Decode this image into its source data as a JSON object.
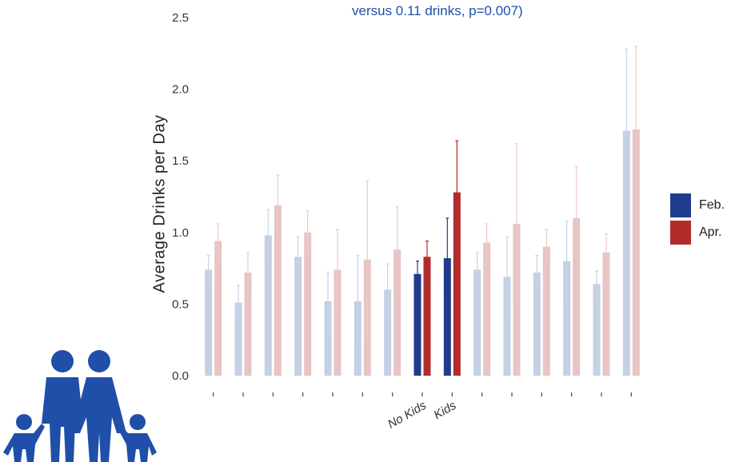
{
  "subtitle": "versus 0.11 drinks, p=0.007)",
  "legend": [
    {
      "label": "Feb.",
      "color": "#1f3d8c"
    },
    {
      "label": "Apr.",
      "color": "#b22c2c"
    }
  ],
  "chart_data": {
    "type": "bar",
    "ylabel": "Average Drinks per Day",
    "ylim": [
      0,
      2.5
    ],
    "yticks": [
      "0.0",
      "0.5",
      "1.0",
      "1.5",
      "2.0",
      "2.5"
    ],
    "categories": [
      "",
      "",
      "",
      "",
      "",
      "",
      "",
      "No Kids",
      "Kids",
      "",
      "",
      "",
      "",
      "",
      ""
    ],
    "highlighted": [
      7,
      8
    ],
    "series": [
      {
        "name": "Feb.",
        "values": [
          0.74,
          0.51,
          0.98,
          0.83,
          0.52,
          0.52,
          0.6,
          0.71,
          0.82,
          0.74,
          0.69,
          0.72,
          0.8,
          0.64,
          1.71
        ],
        "err_low": [
          0.64,
          0.38,
          0.8,
          0.68,
          0.32,
          0.2,
          0.42,
          0.62,
          0.55,
          0.62,
          0.4,
          0.6,
          0.52,
          0.55,
          1.15
        ],
        "err_high": [
          0.84,
          0.63,
          1.16,
          0.97,
          0.72,
          0.84,
          0.78,
          0.8,
          1.1,
          0.86,
          0.97,
          0.84,
          1.08,
          0.73,
          2.28
        ]
      },
      {
        "name": "Apr.",
        "values": [
          0.94,
          0.72,
          1.19,
          1.0,
          0.74,
          0.81,
          0.88,
          0.83,
          1.28,
          0.93,
          1.06,
          0.9,
          1.1,
          0.86,
          1.72
        ],
        "err_low": [
          0.82,
          0.58,
          0.98,
          0.85,
          0.46,
          0.26,
          0.58,
          0.72,
          0.92,
          0.8,
          0.5,
          0.78,
          0.74,
          0.72,
          1.15
        ],
        "err_high": [
          1.06,
          0.86,
          1.4,
          1.15,
          1.02,
          1.36,
          1.18,
          0.94,
          1.64,
          1.06,
          1.62,
          1.02,
          1.46,
          0.99,
          2.3
        ]
      }
    ]
  }
}
